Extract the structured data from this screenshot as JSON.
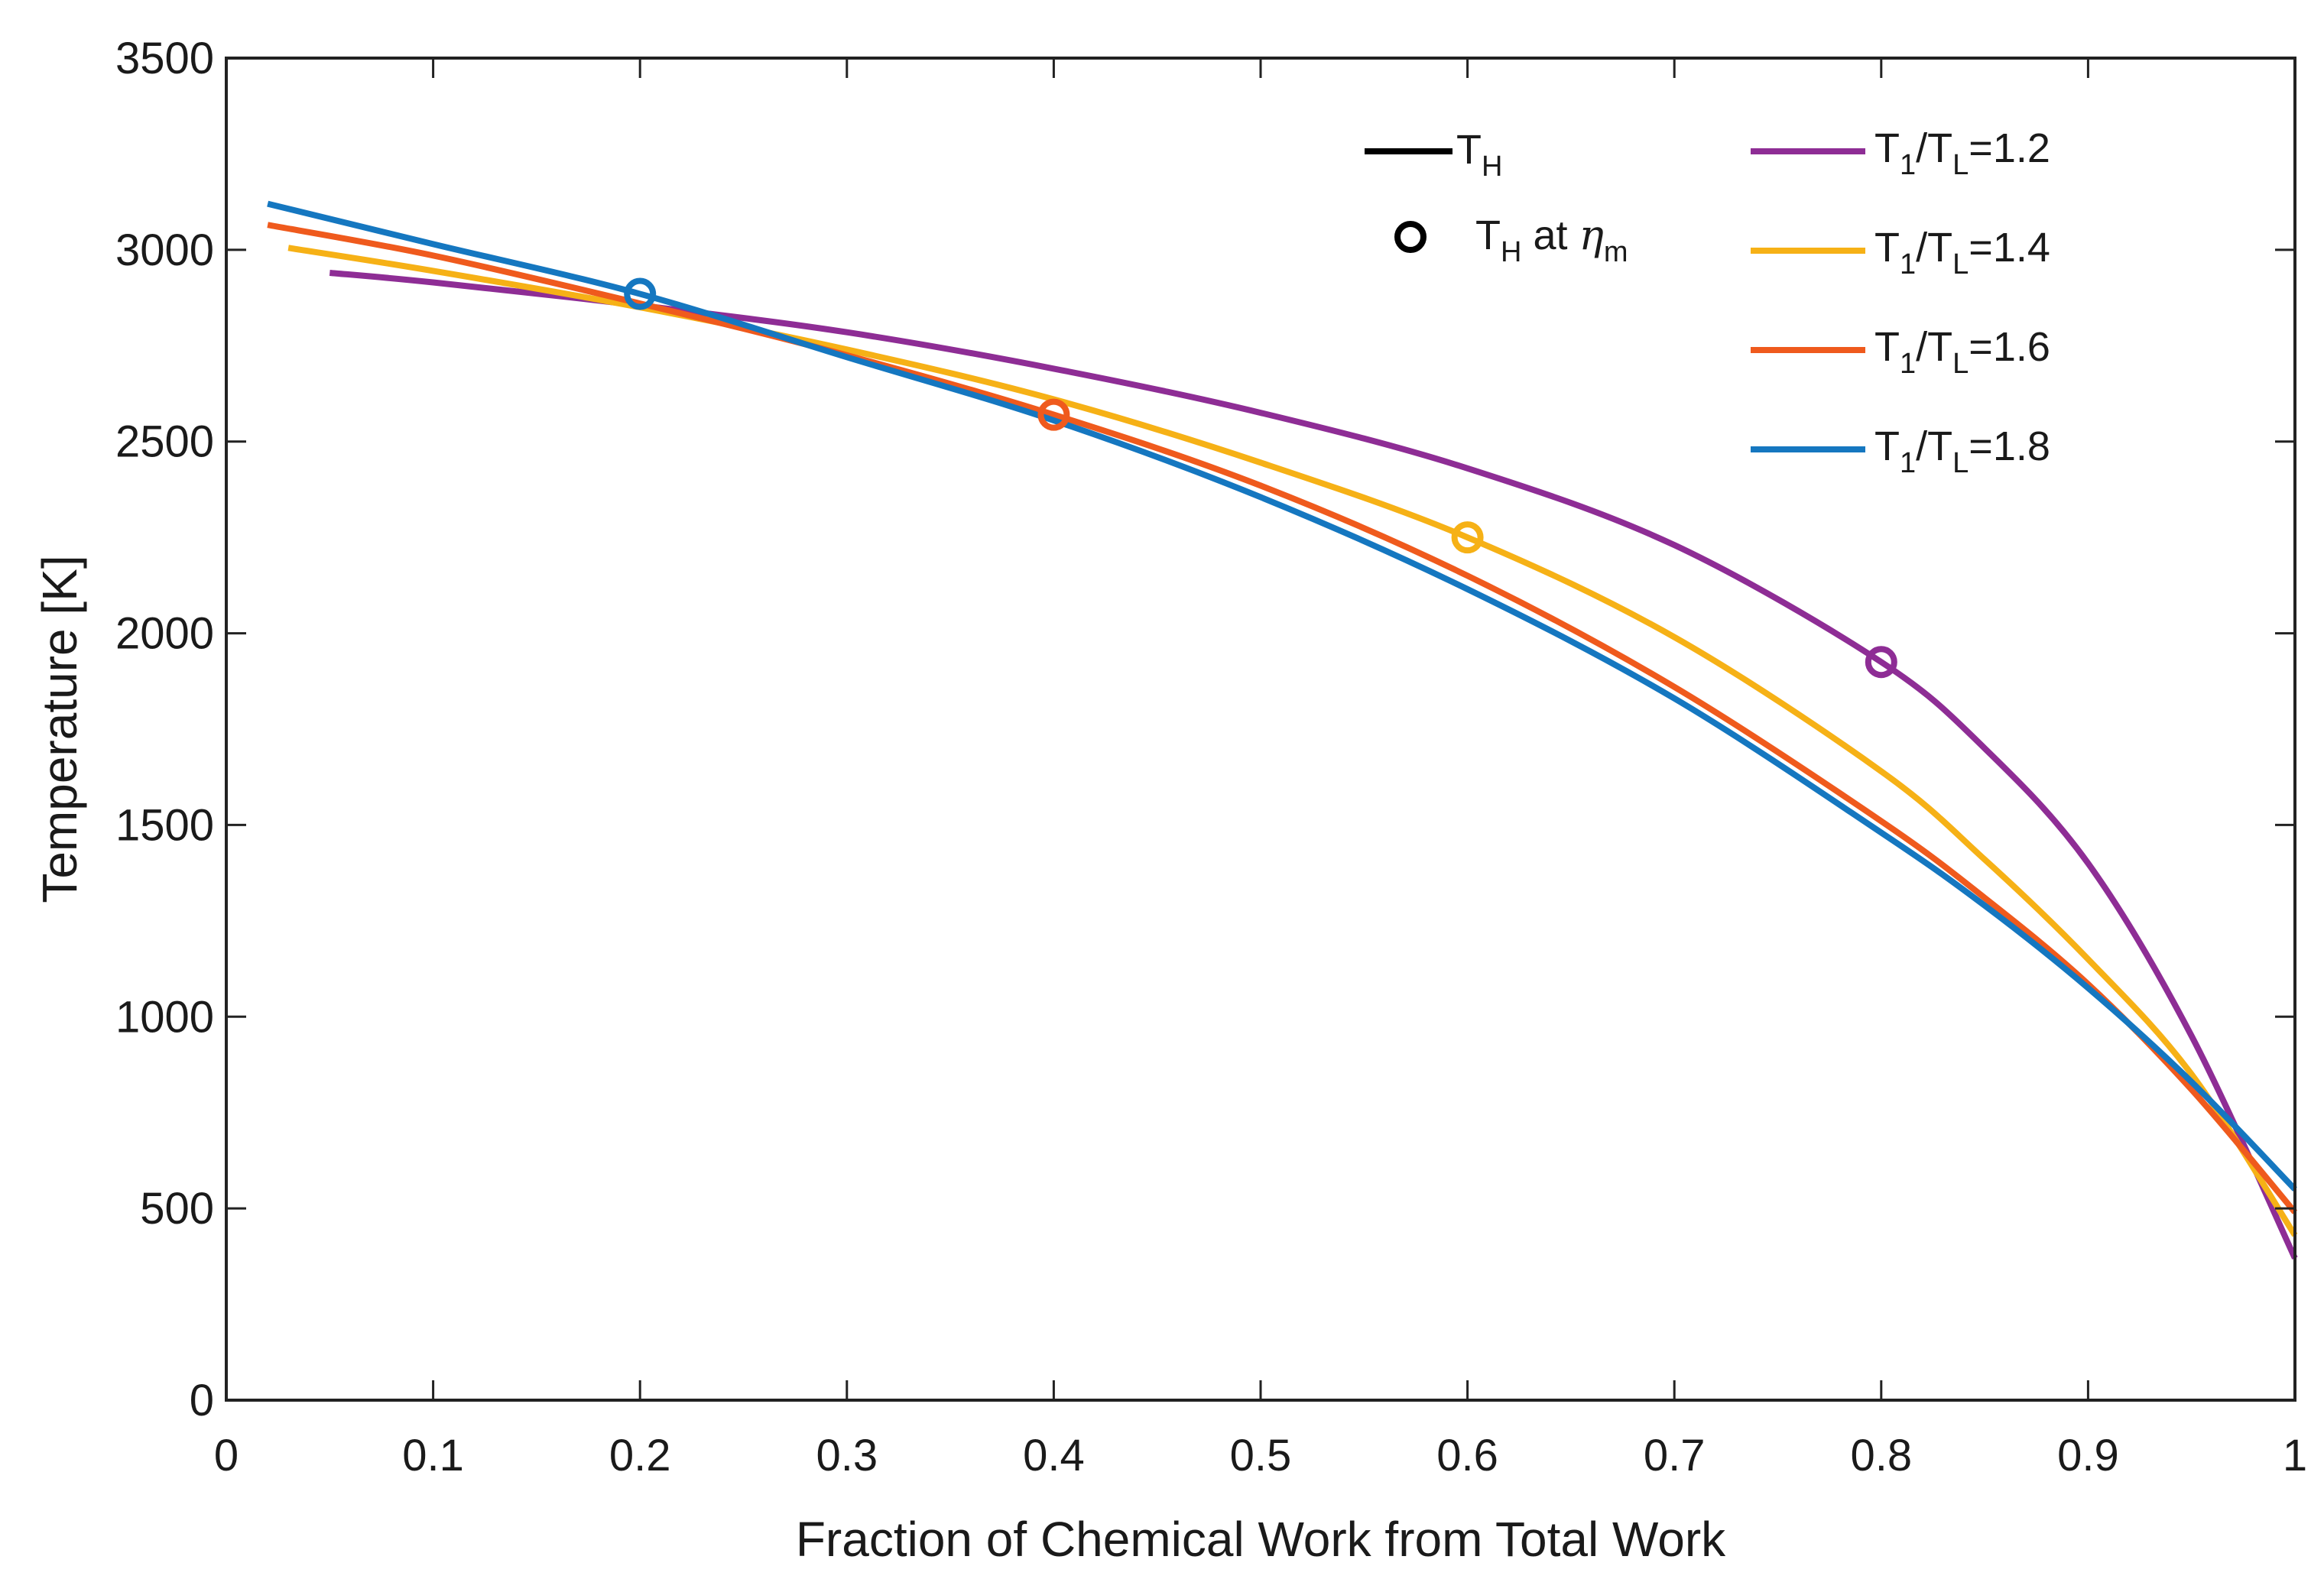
{
  "chart_data": {
    "type": "line",
    "title": "",
    "xlabel": "Fraction of Chemical Work from Total Work",
    "ylabel": "Temperature [K]",
    "xlim": [
      0,
      1
    ],
    "ylim": [
      0,
      3500
    ],
    "x_ticks": [
      0,
      0.1,
      0.2,
      0.3,
      0.4,
      0.5,
      0.6,
      0.7,
      0.8,
      0.9,
      1
    ],
    "x_tick_labels": [
      "0",
      "0.1",
      "0.2",
      "0.3",
      "0.4",
      "0.5",
      "0.6",
      "0.7",
      "0.8",
      "0.9",
      "1"
    ],
    "y_ticks": [
      0,
      500,
      1000,
      1500,
      2000,
      2500,
      3000,
      3500
    ],
    "y_tick_labels": [
      "0",
      "500",
      "1000",
      "1500",
      "2000",
      "2500",
      "3000",
      "3500"
    ],
    "grid": false,
    "legend_position": "top-right",
    "style_legend": [
      {
        "marker": "line",
        "main": "T",
        "sub": "H",
        "suffix": ""
      },
      {
        "marker": "circle",
        "main": "T",
        "sub": "H",
        "suffix": " at ",
        "greek": "η",
        "greek_sub": "m"
      }
    ],
    "series": [
      {
        "name": "T1/TL=1.2",
        "ratio": "1.2",
        "color": "#8e2d95",
        "x": [
          0.05,
          0.1,
          0.2,
          0.3,
          0.4,
          0.5,
          0.6,
          0.7,
          0.8,
          0.85,
          0.9,
          0.95,
          1.0
        ],
        "y": [
          2940,
          2915,
          2855,
          2785,
          2690,
          2575,
          2430,
          2230,
          1925,
          1700,
          1400,
          950,
          370
        ],
        "marker_point": {
          "x": 0.8,
          "y": 1925
        }
      },
      {
        "name": "T1/TL=1.4",
        "ratio": "1.4",
        "color": "#f6b116",
        "x": [
          0.03,
          0.1,
          0.2,
          0.3,
          0.4,
          0.5,
          0.6,
          0.7,
          0.8,
          0.85,
          0.9,
          0.95,
          1.0
        ],
        "y": [
          3005,
          2945,
          2850,
          2740,
          2610,
          2445,
          2250,
          1990,
          1640,
          1410,
          1150,
          850,
          430
        ],
        "marker_point": {
          "x": 0.6,
          "y": 2250
        }
      },
      {
        "name": "T1/TL=1.6",
        "ratio": "1.6",
        "color": "#ef5a1d",
        "x": [
          0.02,
          0.1,
          0.2,
          0.3,
          0.4,
          0.5,
          0.6,
          0.7,
          0.8,
          0.85,
          0.9,
          0.95,
          1.0
        ],
        "y": [
          3065,
          2985,
          2860,
          2725,
          2570,
          2385,
          2150,
          1860,
          1510,
          1310,
          1085,
          810,
          490
        ],
        "marker_point": {
          "x": 0.4,
          "y": 2570
        }
      },
      {
        "name": "T1/TL=1.8",
        "ratio": "1.8",
        "color": "#1577c0",
        "x": [
          0.02,
          0.1,
          0.2,
          0.3,
          0.4,
          0.5,
          0.6,
          0.7,
          0.8,
          0.85,
          0.9,
          0.95,
          1.0
        ],
        "y": [
          3120,
          3015,
          2885,
          2720,
          2555,
          2355,
          2115,
          1830,
          1480,
          1290,
          1075,
          830,
          550
        ],
        "marker_point": {
          "x": 0.2,
          "y": 2885
        }
      }
    ]
  }
}
